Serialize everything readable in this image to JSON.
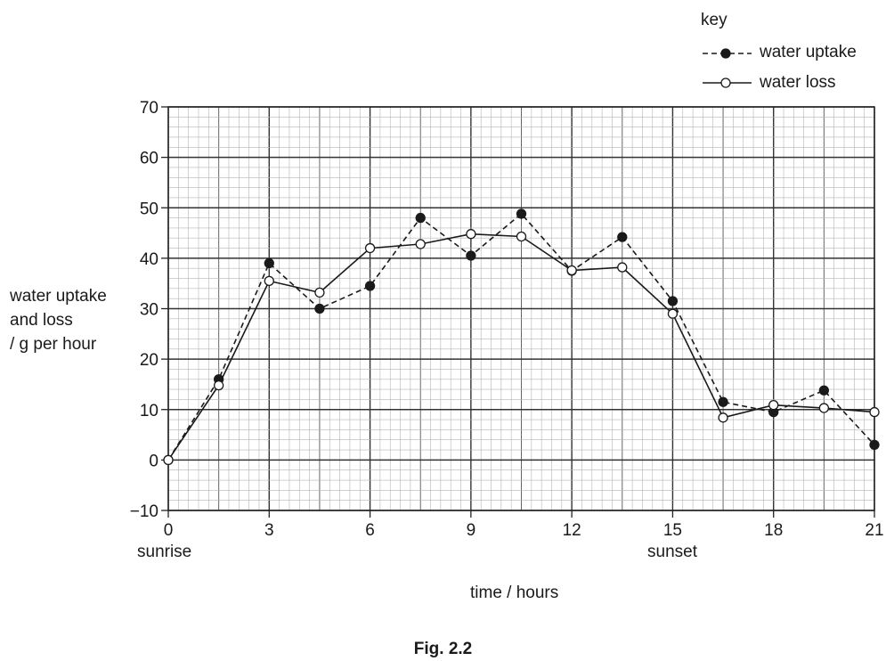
{
  "chart_data": {
    "type": "line",
    "x": [
      0,
      1.5,
      3,
      4.5,
      6,
      7.5,
      9,
      10.5,
      12,
      13.5,
      15,
      16.5,
      18,
      19.5,
      21
    ],
    "series": [
      {
        "name": "water uptake",
        "style": "dashed",
        "marker": "filled-circle",
        "values": [
          0,
          16,
          39,
          30,
          34.5,
          48,
          40.5,
          48.8,
          37.5,
          44.2,
          31.5,
          11.5,
          9.5,
          13.8,
          3
        ]
      },
      {
        "name": "water loss",
        "style": "solid",
        "marker": "open-circle",
        "values": [
          0,
          14.8,
          35.5,
          33.2,
          42,
          42.8,
          44.8,
          44.3,
          37.6,
          38.2,
          29,
          8.4,
          10.9,
          10.3,
          9.5
        ]
      }
    ],
    "x_ticks": [
      "0",
      "3",
      "6",
      "9",
      "12",
      "15",
      "18",
      "21"
    ],
    "y_ticks": [
      "70",
      "60",
      "50",
      "40",
      "30",
      "20",
      "10",
      "0",
      "−10"
    ],
    "xlim": [
      0,
      21
    ],
    "ylim": [
      -10,
      70
    ],
    "xlabel": "time / hours",
    "ylabel": [
      "water uptake",
      "and loss",
      "/ g per hour"
    ],
    "annotations": [
      {
        "text": "sunrise",
        "x": 0
      },
      {
        "text": "sunset",
        "x": 15
      }
    ],
    "legend_title": "key",
    "legend_position": "top-right",
    "grid": true,
    "caption": "Fig. 2.2"
  }
}
